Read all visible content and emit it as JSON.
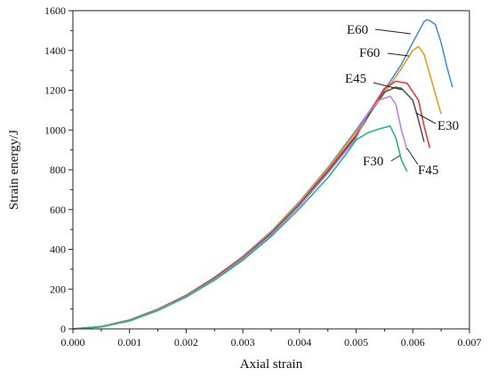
{
  "chart_data": {
    "type": "line",
    "xlabel": "Axial strain",
    "ylabel": "Strain energy/J",
    "xlim": [
      0,
      0.007
    ],
    "ylim": [
      0,
      1600
    ],
    "xticks": [
      "0.000",
      "0.001",
      "0.002",
      "0.003",
      "0.004",
      "0.005",
      "0.006",
      "0.007"
    ],
    "yticks": [
      "0",
      "200",
      "400",
      "600",
      "800",
      "1000",
      "1200",
      "1400",
      "1600"
    ],
    "grid": false,
    "series": [
      {
        "name": "E60",
        "color": "#4a90d9",
        "x": [
          0,
          0.0005,
          0.001,
          0.0015,
          0.002,
          0.0025,
          0.003,
          0.0035,
          0.004,
          0.0045,
          0.005,
          0.0055,
          0.0058,
          0.006,
          0.0062,
          0.00625,
          0.0063,
          0.0064,
          0.0065,
          0.0066,
          0.0067
        ],
        "y": [
          0,
          12,
          45,
          100,
          170,
          260,
          365,
          490,
          640,
          810,
          1000,
          1200,
          1330,
          1440,
          1545,
          1555,
          1550,
          1530,
          1440,
          1320,
          1215
        ]
      },
      {
        "name": "F60",
        "color": "#e0a020",
        "x": [
          0,
          0.0005,
          0.001,
          0.0015,
          0.002,
          0.0025,
          0.003,
          0.0035,
          0.004,
          0.0045,
          0.005,
          0.0055,
          0.0058,
          0.006,
          0.0061,
          0.0062,
          0.0063,
          0.0064,
          0.0065
        ],
        "y": [
          0,
          12,
          44,
          99,
          169,
          258,
          362,
          486,
          635,
          805,
          990,
          1185,
          1310,
          1400,
          1420,
          1380,
          1280,
          1180,
          1080
        ]
      },
      {
        "name": "E45",
        "color": "#e8383f",
        "x": [
          0,
          0.0005,
          0.001,
          0.0015,
          0.002,
          0.0025,
          0.003,
          0.0035,
          0.004,
          0.0045,
          0.005,
          0.0053,
          0.0055,
          0.0057,
          0.0059,
          0.0061,
          0.0062,
          0.0063
        ],
        "y": [
          0,
          11,
          43,
          97,
          166,
          255,
          358,
          481,
          628,
          795,
          975,
          1120,
          1210,
          1245,
          1235,
          1150,
          1020,
          910
        ]
      },
      {
        "name": "E30",
        "color": "#555555",
        "x": [
          0,
          0.0005,
          0.001,
          0.0015,
          0.002,
          0.0025,
          0.003,
          0.0035,
          0.004,
          0.0045,
          0.005,
          0.0053,
          0.0055,
          0.0057,
          0.0058,
          0.006,
          0.0061,
          0.0062
        ],
        "y": [
          0,
          11,
          43,
          96,
          165,
          253,
          355,
          478,
          624,
          790,
          968,
          1110,
          1190,
          1215,
          1210,
          1150,
          1050,
          940
        ]
      },
      {
        "name": "F45",
        "color": "#c080e0",
        "x": [
          0,
          0.0005,
          0.001,
          0.0015,
          0.002,
          0.0025,
          0.003,
          0.0035,
          0.004,
          0.0045,
          0.005,
          0.0052,
          0.0054,
          0.0056,
          0.0057,
          0.0058,
          0.0059
        ],
        "y": [
          0,
          11,
          42,
          95,
          163,
          250,
          352,
          473,
          618,
          782,
          958,
          1080,
          1150,
          1170,
          1130,
          1000,
          900
        ]
      },
      {
        "name": "F30",
        "color": "#2bb08a",
        "x": [
          0,
          0.0005,
          0.001,
          0.0015,
          0.002,
          0.0025,
          0.003,
          0.0035,
          0.004,
          0.0045,
          0.0048,
          0.005,
          0.0052,
          0.0054,
          0.0056,
          0.0057,
          0.0058,
          0.0059
        ],
        "y": [
          0,
          10,
          40,
          92,
          160,
          245,
          345,
          465,
          605,
          760,
          870,
          950,
          985,
          1005,
          1020,
          960,
          850,
          790
        ]
      }
    ]
  }
}
